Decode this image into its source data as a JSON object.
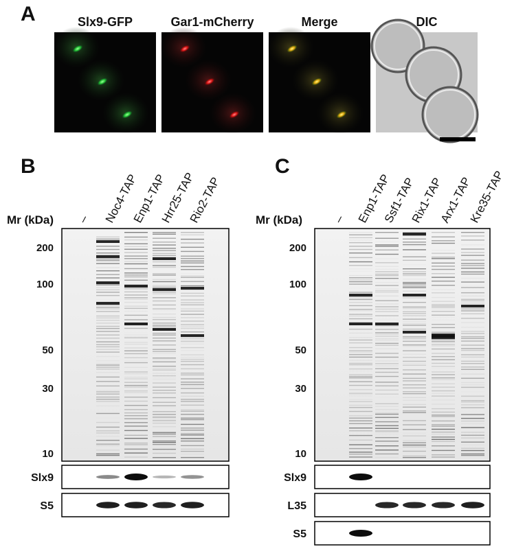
{
  "panel_a": {
    "label": "A",
    "images": [
      "Slx9-GFP",
      "Gar1-mCherry",
      "Merge",
      "DIC"
    ]
  },
  "panel_b": {
    "label": "B",
    "mr_label": "Mr (kDa)",
    "lanes": [
      "–",
      "Noc4-TAP",
      "Enp1-TAP",
      "Hrr25-TAP",
      "Rio2-TAP"
    ],
    "markers": [
      200,
      100,
      50,
      30,
      10
    ],
    "blots": [
      "Slx9",
      "S5"
    ]
  },
  "panel_c": {
    "label": "C",
    "mr_label": "Mr (kDa)",
    "lanes": [
      "–",
      "Enp1-TAP",
      "Ssf1-TAP",
      "Rix1-TAP",
      "Arx1-TAP",
      "Kre35-TAP"
    ],
    "markers": [
      200,
      100,
      50,
      30,
      10
    ],
    "blots": [
      "Slx9",
      "L35",
      "S5"
    ]
  }
}
